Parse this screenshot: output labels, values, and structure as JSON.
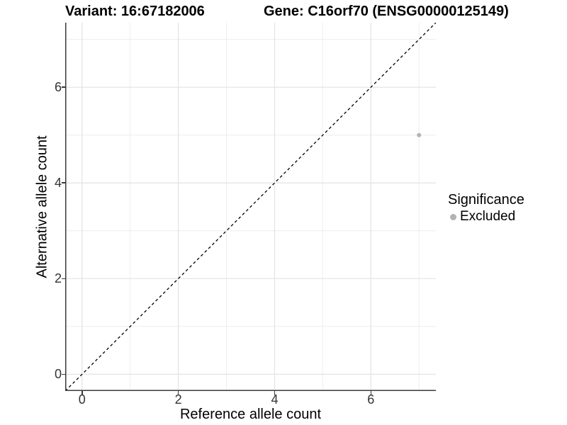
{
  "figure": {
    "title_left": "Variant: 16:67182006",
    "title_right": "Gene: C16orf70 (ENSG00000125149)"
  },
  "chart_data": {
    "type": "scatter",
    "xlabel": "Reference allele count",
    "ylabel": "Alternative allele count",
    "xlim": [
      -0.35,
      7.35
    ],
    "ylim": [
      -0.35,
      7.35
    ],
    "x_major_ticks": [
      0,
      2,
      4,
      6
    ],
    "x_minor_ticks": [
      1,
      3,
      5,
      7
    ],
    "y_major_ticks": [
      0,
      2,
      4,
      6
    ],
    "y_minor_ticks": [
      1,
      3,
      5,
      7
    ],
    "grid": true,
    "identity_line": {
      "x1": -0.35,
      "y1": -0.35,
      "x2": 7.35,
      "y2": 7.35,
      "style": "dashed",
      "color": "#000000"
    },
    "series": [
      {
        "name": "Excluded",
        "color": "#b3b3b3",
        "points": [
          {
            "x": 7,
            "y": 5
          }
        ]
      }
    ],
    "legend": {
      "title": "Significance",
      "position": "right",
      "items": [
        {
          "label": "Excluded",
          "color": "#b3b3b3"
        }
      ]
    }
  },
  "colors": {
    "background": "#ffffff",
    "grid_major": "#e3e3e3",
    "grid_minor": "#eeeeee",
    "axis_line": "#3a3a3a",
    "tick_text": "#333333",
    "title_text": "#000000"
  }
}
